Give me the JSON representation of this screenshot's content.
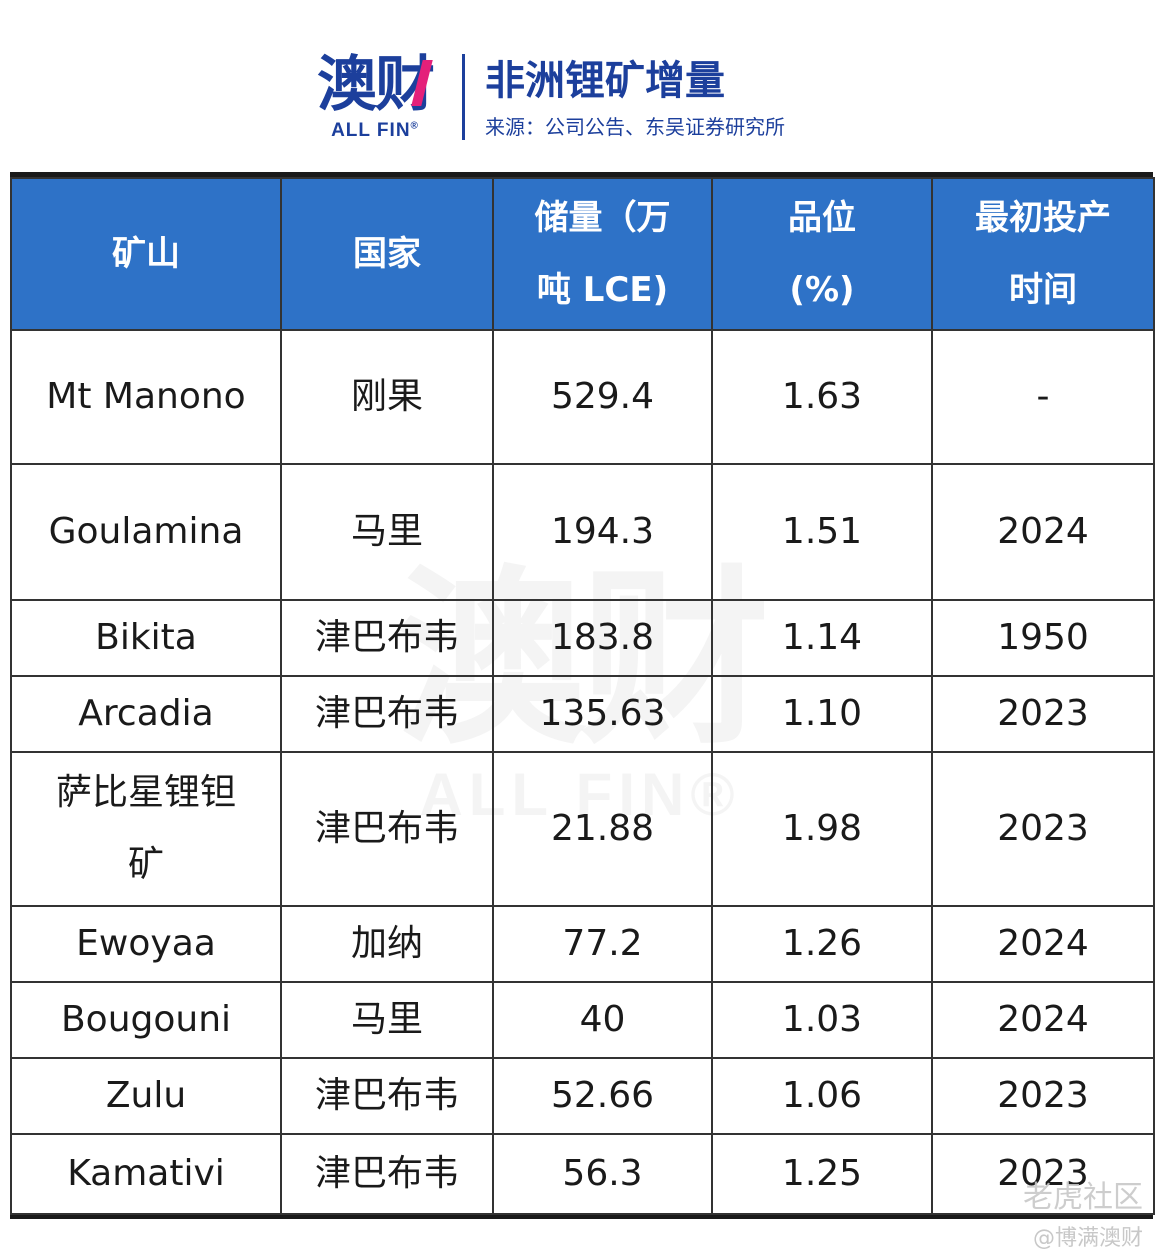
{
  "brand": {
    "logo_text": "澳财",
    "logo_sub": "ALL FIN",
    "registered_mark": "®",
    "accent_color": "#e4207a",
    "brand_color": "#1c3f9c"
  },
  "header": {
    "title": "非洲锂矿增量",
    "source": "来源：公司公告、东吴证券研究所"
  },
  "table": {
    "header_color": "#2e72c7",
    "columns": [
      {
        "line1": "矿山",
        "line2": ""
      },
      {
        "line1": "国家",
        "line2": ""
      },
      {
        "line1": "储量（万",
        "line2": "吨 LCE)"
      },
      {
        "line1": "品位",
        "line2": "(%)"
      },
      {
        "line1": "最初投产",
        "line2": "时间"
      }
    ],
    "rows": [
      {
        "mine": "Mt Manono",
        "country": "刚果",
        "reserve": "529.4",
        "grade": "1.63",
        "year": "-"
      },
      {
        "mine": "Goulamina",
        "country": "马里",
        "reserve": "194.3",
        "grade": "1.51",
        "year": "2024"
      },
      {
        "mine": "Bikita",
        "country": "津巴布韦",
        "reserve": "183.8",
        "grade": "1.14",
        "year": "1950"
      },
      {
        "mine": "Arcadia",
        "country": "津巴布韦",
        "reserve": "135.63",
        "grade": "1.10",
        "year": "2023"
      },
      {
        "mine": "萨比星锂钽矿",
        "country": "津巴布韦",
        "reserve": "21.88",
        "grade": "1.98",
        "year": "2023"
      },
      {
        "mine": "Ewoyaa",
        "country": "加纳",
        "reserve": "77.2",
        "grade": "1.26",
        "year": "2024"
      },
      {
        "mine": "Bougouni",
        "country": "马里",
        "reserve": "40",
        "grade": "1.03",
        "year": "2024"
      },
      {
        "mine": "Zulu",
        "country": "津巴布韦",
        "reserve": "52.66",
        "grade": "1.06",
        "year": "2023"
      },
      {
        "mine": "Kamativi",
        "country": "津巴布韦",
        "reserve": "56.3",
        "grade": "1.25",
        "year": "2023"
      }
    ]
  },
  "watermark": {
    "main": "澳财",
    "sub": "ALL FIN®"
  },
  "credits": {
    "line1": "老虎社区",
    "line2": "@博满澳财"
  }
}
